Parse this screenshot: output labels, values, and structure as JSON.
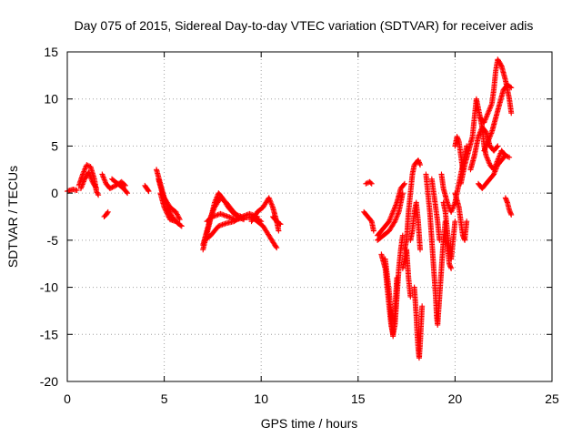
{
  "chart_data": {
    "type": "scatter",
    "title": "Day 075 of 2015, Sidereal Day-to-day VTEC variation (SDTVAR) for receiver adis",
    "xlabel": "GPS time / hours",
    "ylabel": "SDTVAR / TECUs",
    "xlim": [
      0,
      25
    ],
    "ylim": [
      -20,
      15
    ],
    "xticks": [
      0,
      5,
      10,
      15,
      20,
      25
    ],
    "yticks": [
      -20,
      -15,
      -10,
      -5,
      0,
      5,
      10,
      15
    ],
    "grid": true,
    "marker": "+",
    "series": [
      {
        "name": "SDTVAR",
        "color": "#ff0000",
        "tracks": [
          [
            [
              0.0,
              0.2
            ],
            [
              0.3,
              0.4
            ],
            [
              0.5,
              0.3
            ]
          ],
          [
            [
              0.6,
              0.8
            ],
            [
              0.8,
              2.0
            ],
            [
              1.0,
              3.0
            ],
            [
              1.2,
              2.8
            ],
            [
              1.4,
              1.5
            ],
            [
              1.5,
              0.2
            ],
            [
              1.6,
              -0.2
            ]
          ],
          [
            [
              0.7,
              0.5
            ],
            [
              0.9,
              1.5
            ],
            [
              1.1,
              2.2
            ],
            [
              1.3,
              1.2
            ],
            [
              1.5,
              0.5
            ]
          ],
          [
            [
              1.8,
              2.0
            ],
            [
              2.0,
              1.0
            ],
            [
              2.2,
              0.5
            ],
            [
              2.5,
              0.8
            ],
            [
              2.8,
              1.2
            ],
            [
              3.0,
              0.8
            ]
          ],
          [
            [
              1.9,
              -2.5
            ],
            [
              2.0,
              -2.3
            ],
            [
              2.1,
              -2.0
            ]
          ],
          [
            [
              2.3,
              1.5
            ],
            [
              2.6,
              1.0
            ],
            [
              2.9,
              0.5
            ],
            [
              3.1,
              0.0
            ]
          ],
          [
            [
              4.0,
              0.8
            ],
            [
              4.1,
              0.5
            ],
            [
              4.2,
              0.2
            ]
          ],
          [
            [
              4.6,
              2.5
            ],
            [
              4.8,
              1.0
            ],
            [
              5.0,
              -0.5
            ],
            [
              5.3,
              -1.5
            ],
            [
              5.6,
              -2.0
            ],
            [
              5.8,
              -2.8
            ]
          ],
          [
            [
              4.7,
              1.5
            ],
            [
              4.9,
              0.0
            ],
            [
              5.1,
              -1.0
            ],
            [
              5.4,
              -2.5
            ],
            [
              5.7,
              -3.2
            ],
            [
              5.9,
              -3.5
            ]
          ],
          [
            [
              4.8,
              0.0
            ],
            [
              5.0,
              -1.5
            ],
            [
              5.3,
              -2.8
            ],
            [
              5.6,
              -3.0
            ]
          ],
          [
            [
              7.0,
              -5.5
            ],
            [
              7.2,
              -4.0
            ],
            [
              7.4,
              -2.5
            ],
            [
              7.6,
              -1.5
            ],
            [
              7.9,
              -0.5
            ],
            [
              8.2,
              -1.0
            ],
            [
              8.5,
              -1.8
            ],
            [
              8.8,
              -2.5
            ],
            [
              9.1,
              -2.8
            ]
          ],
          [
            [
              7.0,
              -6.0
            ],
            [
              7.3,
              -3.5
            ],
            [
              7.6,
              -1.0
            ],
            [
              7.8,
              0.0
            ],
            [
              8.0,
              -0.5
            ],
            [
              8.3,
              -1.5
            ],
            [
              8.6,
              -2.2
            ],
            [
              9.0,
              -2.5
            ]
          ],
          [
            [
              7.1,
              -5.0
            ],
            [
              7.4,
              -4.5
            ],
            [
              7.8,
              -3.5
            ],
            [
              8.2,
              -3.2
            ],
            [
              8.6,
              -3.0
            ],
            [
              9.0,
              -2.5
            ],
            [
              9.4,
              -2.2
            ],
            [
              9.8,
              -2.5
            ]
          ],
          [
            [
              7.2,
              -3.0
            ],
            [
              7.5,
              -2.5
            ],
            [
              7.9,
              -2.2
            ],
            [
              8.3,
              -2.5
            ],
            [
              8.7,
              -2.8
            ],
            [
              9.2,
              -2.6
            ],
            [
              9.7,
              -2.6
            ],
            [
              10.0,
              -3.0
            ]
          ],
          [
            [
              9.5,
              -3.0
            ],
            [
              9.8,
              -2.0
            ],
            [
              10.1,
              -1.5
            ],
            [
              10.4,
              -0.5
            ],
            [
              10.6,
              -1.5
            ],
            [
              10.8,
              -3.0
            ],
            [
              10.9,
              -4.0
            ]
          ],
          [
            [
              9.5,
              -2.5
            ],
            [
              9.8,
              -3.0
            ],
            [
              10.1,
              -3.5
            ],
            [
              10.4,
              -4.5
            ],
            [
              10.7,
              -5.5
            ],
            [
              10.8,
              -5.8
            ]
          ],
          [
            [
              10.6,
              -2.5
            ],
            [
              10.8,
              -3.0
            ],
            [
              11.0,
              -3.3
            ]
          ],
          [
            [
              15.4,
              1.0
            ],
            [
              15.6,
              1.2
            ],
            [
              15.7,
              1.0
            ]
          ],
          [
            [
              15.3,
              -2.0
            ],
            [
              15.5,
              -2.5
            ],
            [
              15.7,
              -3.0
            ],
            [
              15.8,
              -4.0
            ]
          ],
          [
            [
              16.0,
              -4.5
            ],
            [
              16.2,
              -4.0
            ],
            [
              16.4,
              -3.5
            ],
            [
              16.6,
              -3.0
            ],
            [
              16.8,
              -2.0
            ],
            [
              17.0,
              -1.0
            ],
            [
              17.2,
              0.5
            ],
            [
              17.4,
              1.0
            ]
          ],
          [
            [
              16.0,
              -5.0
            ],
            [
              16.3,
              -4.5
            ],
            [
              16.6,
              -4.0
            ],
            [
              16.9,
              -3.0
            ],
            [
              17.1,
              -2.0
            ],
            [
              17.3,
              0.0
            ]
          ],
          [
            [
              16.2,
              -6.5
            ],
            [
              16.4,
              -8.0
            ],
            [
              16.5,
              -10.0
            ],
            [
              16.6,
              -12.0
            ],
            [
              16.7,
              -14.0
            ],
            [
              16.8,
              -15.0
            ],
            [
              16.9,
              -14.0
            ],
            [
              17.0,
              -11.0
            ],
            [
              17.1,
              -8.0
            ],
            [
              17.2,
              -6.0
            ],
            [
              17.3,
              -4.5
            ]
          ],
          [
            [
              16.4,
              -7.0
            ],
            [
              16.6,
              -10.5
            ],
            [
              16.7,
              -13.0
            ],
            [
              16.8,
              -15.2
            ],
            [
              16.9,
              -12.5
            ],
            [
              17.0,
              -9.0
            ]
          ],
          [
            [
              17.4,
              -6.0
            ],
            [
              17.5,
              -5.0
            ],
            [
              17.6,
              -2.0
            ],
            [
              17.7,
              0.0
            ],
            [
              17.8,
              2.0
            ],
            [
              17.9,
              3.0
            ],
            [
              18.1,
              3.5
            ],
            [
              18.2,
              3.0
            ]
          ],
          [
            [
              17.3,
              -8.0
            ],
            [
              17.5,
              -6.0
            ],
            [
              17.6,
              -9.0
            ],
            [
              17.7,
              -11.0
            ]
          ],
          [
            [
              17.7,
              -5.0
            ],
            [
              17.8,
              -4.0
            ],
            [
              17.9,
              -2.0
            ],
            [
              18.0,
              -1.0
            ],
            [
              18.1,
              -3.0
            ],
            [
              18.2,
              -6.0
            ]
          ],
          [
            [
              17.9,
              -10.0
            ],
            [
              18.0,
              -13.0
            ],
            [
              18.05,
              -15.0
            ],
            [
              18.1,
              -16.5
            ],
            [
              18.15,
              -17.5
            ],
            [
              18.2,
              -16.0
            ],
            [
              18.3,
              -12.0
            ]
          ],
          [
            [
              18.5,
              2.0
            ],
            [
              18.6,
              0.0
            ],
            [
              18.7,
              -2.0
            ],
            [
              18.8,
              -5.0
            ],
            [
              18.9,
              -8.0
            ],
            [
              19.0,
              -11.0
            ],
            [
              19.05,
              -13.0
            ],
            [
              19.1,
              -14.0
            ],
            [
              19.2,
              -11.0
            ],
            [
              19.3,
              -8.0
            ],
            [
              19.4,
              -5.0
            ],
            [
              19.5,
              -3.0
            ]
          ],
          [
            [
              18.8,
              1.5
            ],
            [
              18.9,
              0.0
            ],
            [
              19.0,
              -1.5
            ],
            [
              19.1,
              -3.0
            ],
            [
              19.2,
              -5.0
            ]
          ],
          [
            [
              19.3,
              2.0
            ],
            [
              19.4,
              0.5
            ],
            [
              19.6,
              -1.0
            ],
            [
              19.8,
              -2.0
            ],
            [
              20.0,
              -1.0
            ],
            [
              20.2,
              1.0
            ],
            [
              20.4,
              3.0
            ],
            [
              20.6,
              5.0
            ]
          ],
          [
            [
              19.4,
              -1.0
            ],
            [
              19.5,
              -2.0
            ],
            [
              19.6,
              -4.0
            ],
            [
              19.7,
              -6.0
            ],
            [
              19.8,
              -7.0
            ],
            [
              19.9,
              -5.0
            ],
            [
              20.0,
              -3.0
            ]
          ],
          [
            [
              19.5,
              -4.5
            ],
            [
              19.6,
              -5.5
            ],
            [
              19.7,
              -7.5
            ],
            [
              19.8,
              -8.0
            ]
          ],
          [
            [
              20.0,
              0.0
            ],
            [
              20.2,
              -1.5
            ],
            [
              20.3,
              -3.0
            ],
            [
              20.4,
              -4.5
            ],
            [
              20.5,
              -5.0
            ],
            [
              20.6,
              -3.0
            ]
          ],
          [
            [
              20.0,
              5.0
            ],
            [
              20.1,
              6.0
            ],
            [
              20.2,
              5.5
            ],
            [
              20.3,
              4.0
            ],
            [
              20.4,
              2.5
            ]
          ],
          [
            [
              20.3,
              1.0
            ],
            [
              20.5,
              3.0
            ],
            [
              20.7,
              4.5
            ],
            [
              20.9,
              6.0
            ],
            [
              21.0,
              8.0
            ],
            [
              21.1,
              10.0
            ],
            [
              21.2,
              9.0
            ],
            [
              21.4,
              7.0
            ],
            [
              21.5,
              5.0
            ],
            [
              21.6,
              4.0
            ],
            [
              21.8,
              3.0
            ],
            [
              22.0,
              2.5
            ],
            [
              22.2,
              3.5
            ],
            [
              22.4,
              4.5
            ],
            [
              22.6,
              4.0
            ]
          ],
          [
            [
              20.8,
              2.5
            ],
            [
              21.0,
              4.0
            ],
            [
              21.2,
              6.0
            ],
            [
              21.4,
              7.0
            ],
            [
              21.6,
              6.5
            ],
            [
              21.8,
              5.0
            ],
            [
              22.0,
              4.5
            ],
            [
              22.2,
              5.0
            ]
          ],
          [
            [
              21.2,
              1.0
            ],
            [
              21.4,
              0.5
            ],
            [
              21.6,
              1.0
            ],
            [
              21.8,
              1.5
            ],
            [
              22.0,
              2.0
            ],
            [
              22.2,
              3.0
            ],
            [
              22.4,
              3.5
            ],
            [
              22.6,
              4.0
            ],
            [
              22.8,
              3.8
            ]
          ],
          [
            [
              21.3,
              8.0
            ],
            [
              21.5,
              7.5
            ],
            [
              21.7,
              8.5
            ],
            [
              21.9,
              9.5
            ],
            [
              22.0,
              11.0
            ],
            [
              22.1,
              13.0
            ],
            [
              22.2,
              14.2
            ],
            [
              22.4,
              13.5
            ],
            [
              22.6,
              12.0
            ],
            [
              22.7,
              11.0
            ],
            [
              22.8,
              10.0
            ],
            [
              22.9,
              8.5
            ]
          ],
          [
            [
              21.5,
              4.5
            ],
            [
              21.7,
              5.5
            ],
            [
              21.9,
              6.5
            ],
            [
              22.1,
              8.0
            ],
            [
              22.3,
              9.5
            ],
            [
              22.5,
              11.0
            ],
            [
              22.7,
              11.5
            ],
            [
              22.9,
              11.2
            ]
          ],
          [
            [
              22.6,
              -0.5
            ],
            [
              22.7,
              -1.0
            ],
            [
              22.8,
              -1.8
            ],
            [
              22.9,
              -2.3
            ]
          ]
        ]
      }
    ]
  }
}
